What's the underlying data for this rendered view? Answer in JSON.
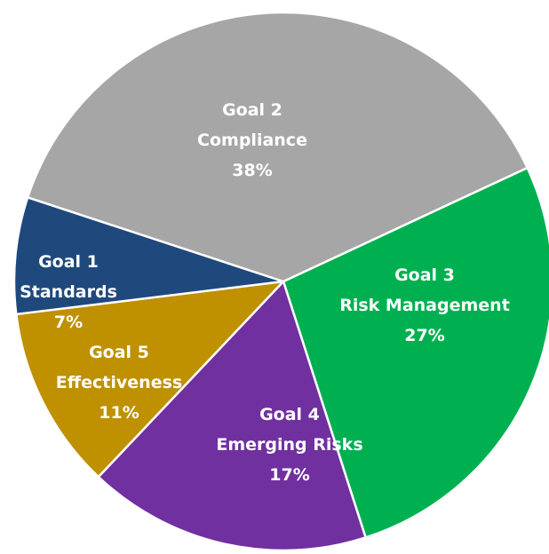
{
  "chart_data": {
    "type": "pie",
    "title": "",
    "start_angle_deg": -25,
    "direction": "clockwise",
    "slices": [
      {
        "goal": "Goal 3",
        "name": "Risk Management",
        "value": 27,
        "pct_label": "27%",
        "color": "#00B050"
      },
      {
        "goal": "Goal 4",
        "name": "Emerging Risks",
        "value": 17,
        "pct_label": "17%",
        "color": "#7030A0"
      },
      {
        "goal": "Goal 5",
        "name": "Effectiveness",
        "value": 11,
        "pct_label": "11%",
        "color": "#BF9000"
      },
      {
        "goal": "Goal 1",
        "name": "Standards",
        "value": 7,
        "pct_label": "7%",
        "color": "#1F497D"
      },
      {
        "goal": "Goal 2",
        "name": "Compliance",
        "value": 38,
        "pct_label": "38%",
        "color": "#A6A6A6"
      }
    ]
  }
}
